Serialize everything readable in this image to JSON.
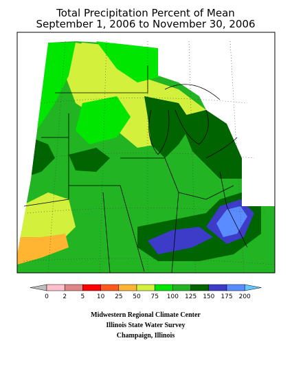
{
  "title": [
    "Total Precipitation Percent of Mean",
    "September 1, 2006 to November 30, 2006"
  ],
  "legend": {
    "ticks": [
      0,
      2,
      5,
      10,
      25,
      50,
      75,
      100,
      125,
      150,
      175,
      200
    ],
    "colors": [
      "#bdbdbd",
      "#ffc0cb",
      "#e08585",
      "#ff0000",
      "#ff5a1e",
      "#ffb432",
      "#d2f03c",
      "#00e600",
      "#22b422",
      "#006400",
      "#3c3cc8",
      "#5a8cff",
      "#64c8ff"
    ]
  },
  "credits": [
    "Midwestern Regional Climate Center",
    "Illinois State Water Survey",
    "Champaign, Illinois"
  ]
}
